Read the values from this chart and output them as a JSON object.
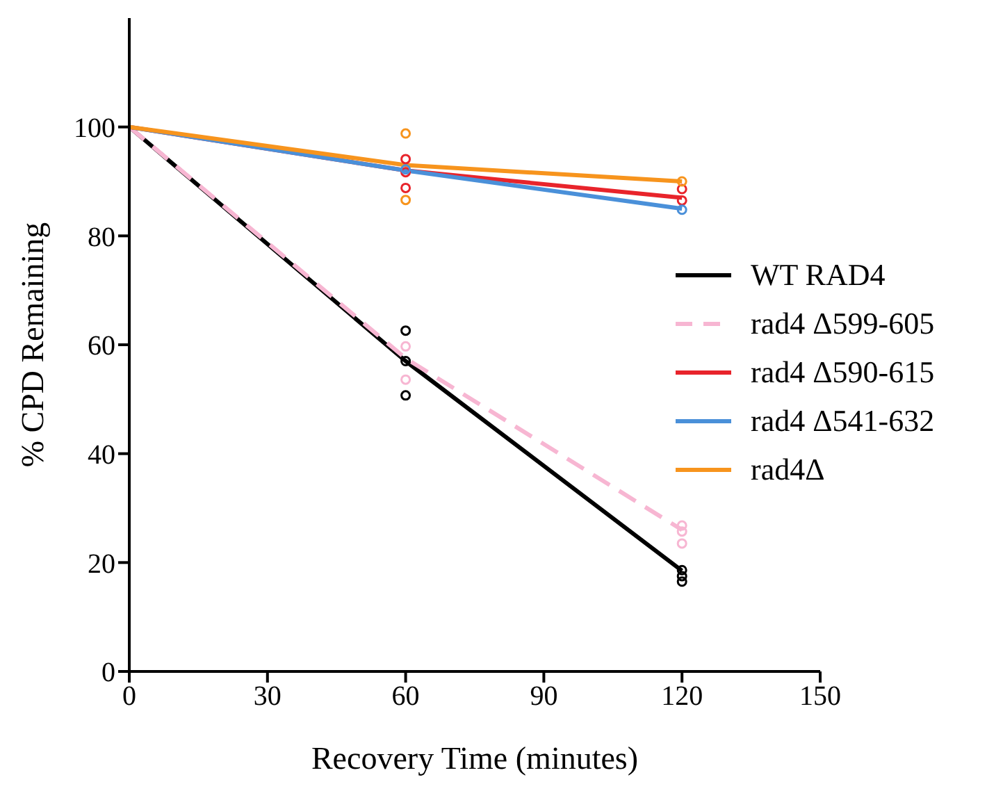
{
  "chart_data": {
    "type": "line",
    "xlabel": "Recovery Time (minutes)",
    "ylabel": "% CPD Remaining",
    "xlim": [
      0,
      150
    ],
    "xticks": [
      0,
      30,
      60,
      90,
      120,
      150
    ],
    "ylim": [
      0,
      120
    ],
    "yticks": [
      0,
      20,
      40,
      60,
      80,
      100
    ],
    "grid": false,
    "legend": "right",
    "marker": "none",
    "series": [
      {
        "name": "WT RAD4",
        "color": "#000000",
        "x": [
          0,
          60,
          120
        ],
        "values": [
          100,
          57,
          18.5
        ],
        "line_style": "solid"
      },
      {
        "name": "rad4 Δ599-605",
        "color": "#f7b6d2",
        "x": [
          0,
          60,
          120
        ],
        "values": [
          100,
          57.5,
          26
        ],
        "line_style": "dashed"
      },
      {
        "name": "rad4 Δ590-615",
        "color": "#e8242b",
        "x": [
          0,
          60,
          120
        ],
        "values": [
          100,
          92,
          87
        ],
        "line_style": "solid"
      },
      {
        "name": "rad4 Δ541-632",
        "color": "#4a90d9",
        "x": [
          0,
          60,
          120
        ],
        "values": [
          100,
          92,
          85
        ],
        "line_style": "solid"
      },
      {
        "name": "rad4Δ",
        "color": "#f7941d",
        "x": [
          0,
          60,
          120
        ],
        "values": [
          100,
          93,
          90
        ],
        "line_style": "solid"
      },
      {
        "type": "scatter",
        "color": "#000000",
        "marker": "circle",
        "x": [
          60,
          60,
          60,
          120,
          120,
          120
        ],
        "values": [
          62.6,
          57,
          50.7,
          18.6,
          17.5,
          16.5
        ]
      },
      {
        "type": "scatter",
        "color": "#f7b6d2",
        "marker": "circle",
        "x": [
          60,
          60,
          120,
          120,
          120
        ],
        "values": [
          59.7,
          53.6,
          26.8,
          25.7,
          23.5
        ]
      },
      {
        "type": "scatter",
        "color": "#e8242b",
        "marker": "circle",
        "x": [
          60,
          60,
          60,
          120,
          120
        ],
        "values": [
          94.1,
          91.7,
          88.8,
          88.6,
          86.5
        ]
      },
      {
        "type": "scatter",
        "color": "#4a90d9",
        "marker": "circle",
        "x": [
          60,
          120
        ],
        "values": [
          92.2,
          84.8
        ]
      },
      {
        "type": "scatter",
        "color": "#f7941d",
        "marker": "circle",
        "x": [
          60,
          60,
          120
        ],
        "values": [
          98.8,
          86.6,
          90
        ]
      }
    ]
  }
}
